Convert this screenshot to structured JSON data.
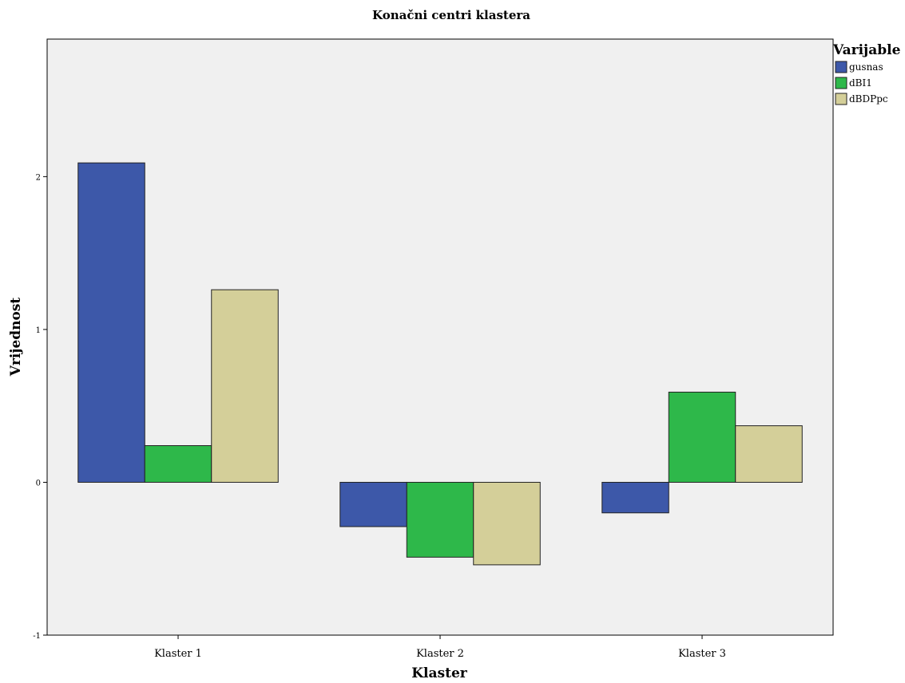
{
  "chart_data": {
    "type": "bar",
    "title": "Konačni centri klastera",
    "xlabel": "Klaster",
    "ylabel": "Vrijednost",
    "categories": [
      "Klaster 1",
      "Klaster 2",
      "Klaster 3"
    ],
    "ylim": [
      -1,
      2.9
    ],
    "yticks": [
      "-1",
      "0",
      "1",
      "2"
    ],
    "grid": false,
    "legend": {
      "title": "Varijable",
      "placement": "right"
    },
    "series": [
      {
        "name": "gusnas",
        "color": "#3d58a9",
        "values": [
          2.09,
          -0.29,
          -0.2
        ]
      },
      {
        "name": "dBI1",
        "color": "#2eb84a",
        "values": [
          0.24,
          -0.49,
          0.59
        ]
      },
      {
        "name": "dBDPpc",
        "color": "#d4cf99",
        "values": [
          1.26,
          -0.54,
          0.37
        ]
      }
    ],
    "plot_background": "#f0f0f0"
  }
}
